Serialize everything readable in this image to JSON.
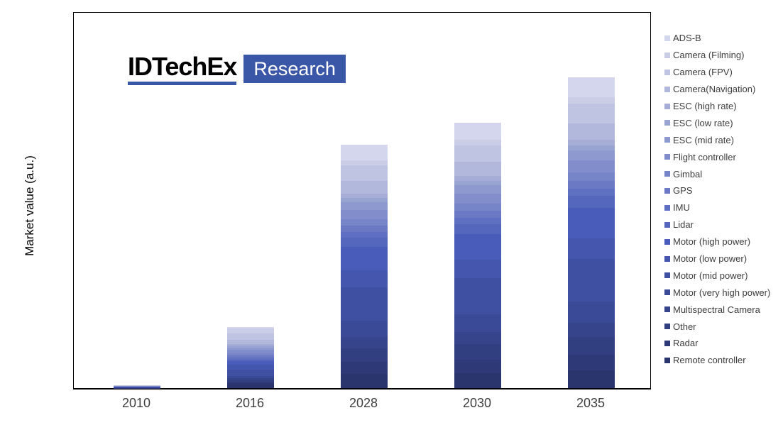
{
  "logo": {
    "brand": "IDTechEx",
    "product": "Research",
    "accent_color": "#3a57a7"
  },
  "chart_data": {
    "type": "bar",
    "stacked": true,
    "title": "",
    "xlabel": "",
    "ylabel": "Market value  (a.u.)",
    "categories": [
      "2010",
      "2016",
      "2028",
      "2030",
      "2035"
    ],
    "ylim": [
      0,
      121
    ],
    "grid": false,
    "legend_position": "right",
    "axis_color": "#000000",
    "tick_label_color": "#3f3f3f",
    "series": [
      {
        "name": "ADS-B",
        "color": "#d3d6ec",
        "values": [
          0.02,
          0.5,
          5.0,
          5.5,
          6.4
        ]
      },
      {
        "name": "Camera (Filming)",
        "color": "#c9cde6",
        "values": [
          0.1,
          1.5,
          1.6,
          1.8,
          2.1
        ]
      },
      {
        "name": "Camera (FPV)",
        "color": "#bfc4e2",
        "values": [
          0.15,
          2.0,
          4.9,
          5.3,
          6.2
        ]
      },
      {
        "name": "Camera(Navigation)",
        "color": "#b1b8dc",
        "values": [
          0.08,
          1.5,
          4.2,
          4.5,
          5.3
        ]
      },
      {
        "name": "ESC (high rate)",
        "color": "#a6aed8",
        "values": [
          0.02,
          0.4,
          1.4,
          1.5,
          1.8
        ]
      },
      {
        "name": "ESC (low rate)",
        "color": "#9aa4d3",
        "values": [
          0.03,
          0.6,
          1.4,
          1.5,
          1.8
        ]
      },
      {
        "name": "ESC (mid rate)",
        "color": "#8e99cf",
        "values": [
          0.03,
          0.8,
          2.5,
          2.7,
          3.2
        ]
      },
      {
        "name": "Flight controller",
        "color": "#828ecb",
        "values": [
          0.06,
          1.0,
          2.9,
          3.2,
          3.7
        ]
      },
      {
        "name": "Gimbal",
        "color": "#7684c8",
        "values": [
          0.05,
          0.8,
          2.1,
          2.3,
          2.7
        ]
      },
      {
        "name": "GPS",
        "color": "#6b79c4",
        "values": [
          0.06,
          0.7,
          2.1,
          2.3,
          2.7
        ]
      },
      {
        "name": "IMU",
        "color": "#5f6fc1",
        "values": [
          0.05,
          0.6,
          1.8,
          2.0,
          2.3
        ]
      },
      {
        "name": "Lidar",
        "color": "#5566bd",
        "values": [
          0.02,
          0.5,
          2.9,
          3.2,
          3.7
        ]
      },
      {
        "name": "Motor (high  power)",
        "color": "#4a5cba",
        "values": [
          0.05,
          1.2,
          7.7,
          8.3,
          9.8
        ]
      },
      {
        "name": "Motor (low power)",
        "color": "#4456ae",
        "values": [
          0.08,
          1.5,
          5.3,
          5.8,
          6.8
        ]
      },
      {
        "name": "Motor (mid power)",
        "color": "#3f50a2",
        "values": [
          0.1,
          2.0,
          10.7,
          11.7,
          13.7
        ]
      },
      {
        "name": "Motor (very high  power)",
        "color": "#3a4a96",
        "values": [
          0.02,
          0.8,
          5.3,
          5.8,
          6.8
        ]
      },
      {
        "name": "Multispectral  Camera",
        "color": "#35448b",
        "values": [
          0.02,
          0.4,
          3.6,
          3.9,
          4.6
        ]
      },
      {
        "name": "Other",
        "color": "#313f80",
        "values": [
          0.04,
          0.9,
          4.5,
          4.9,
          5.7
        ]
      },
      {
        "name": "Radar",
        "color": "#2e3a78",
        "values": [
          0.01,
          0.4,
          3.9,
          4.3,
          5.0
        ]
      },
      {
        "name": "Remote controller",
        "color": "#2a356e",
        "values": [
          0.06,
          1.5,
          4.5,
          4.9,
          5.7
        ]
      }
    ]
  }
}
